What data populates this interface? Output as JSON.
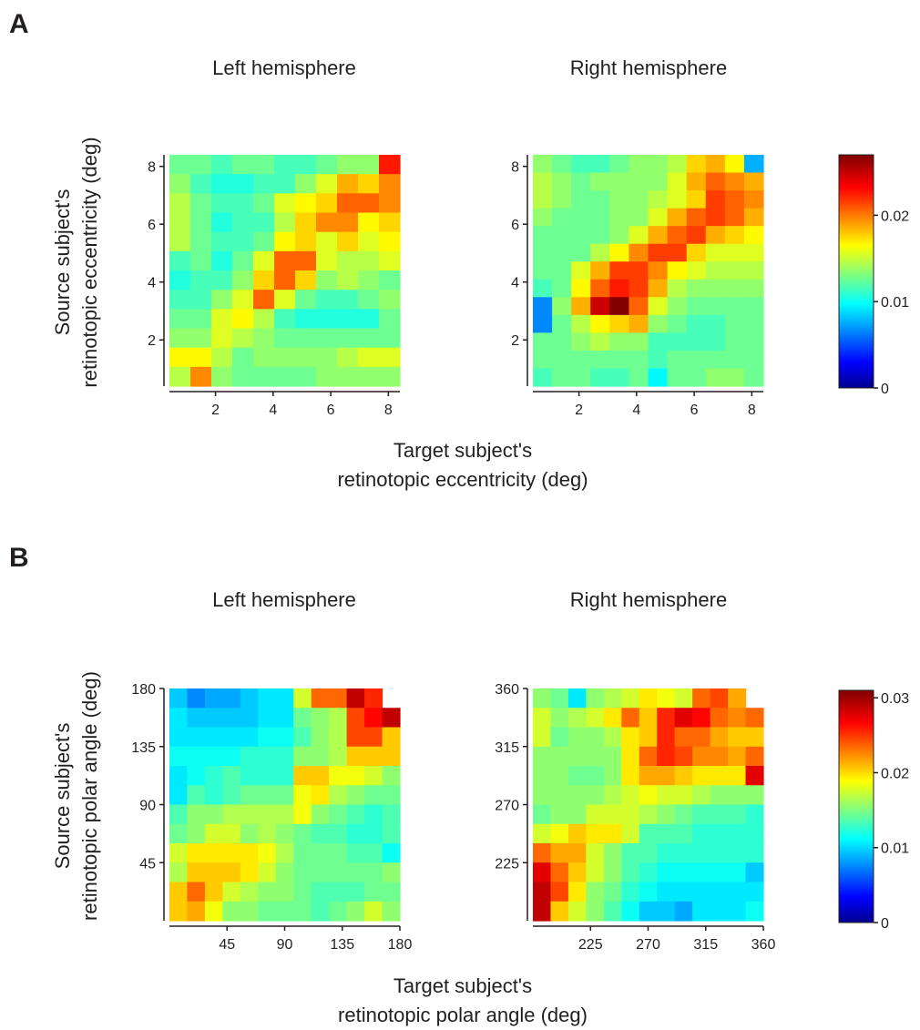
{
  "figure": {
    "panels": [
      {
        "letter": "A",
        "ylabel_line1": "Source subject's",
        "ylabel_line2": "retinotopic eccentricity (deg)",
        "xlabel_line1": "Target subject's",
        "xlabel_line2": "retinotopic eccentricity (deg)"
      },
      {
        "letter": "B",
        "ylabel_line1": "Source subject's",
        "ylabel_line2": "retinotopic polar angle (deg)",
        "xlabel_line1": "Target subject's",
        "xlabel_line2": "retinotopic polar angle (deg)"
      }
    ]
  },
  "chart_data": [
    {
      "type": "heatmap",
      "panel": "A",
      "title": "Left hemisphere",
      "colormap": "jet",
      "x": {
        "min": 0.4,
        "max": 8.4,
        "ticks": [
          2,
          4,
          6,
          8
        ]
      },
      "y": {
        "min": 0.4,
        "max": 8.4,
        "ticks": [
          2,
          4,
          6,
          8
        ]
      },
      "color_range": [
        0,
        0.027
      ],
      "rows_top_to_bottom": [
        [
          0.013,
          0.013,
          0.012,
          0.013,
          0.013,
          0.012,
          0.012,
          0.013,
          0.014,
          0.014,
          0.023
        ],
        [
          0.014,
          0.012,
          0.011,
          0.011,
          0.012,
          0.012,
          0.014,
          0.016,
          0.019,
          0.018,
          0.02
        ],
        [
          0.015,
          0.013,
          0.012,
          0.012,
          0.013,
          0.016,
          0.017,
          0.018,
          0.021,
          0.021,
          0.02
        ],
        [
          0.015,
          0.013,
          0.011,
          0.012,
          0.012,
          0.015,
          0.018,
          0.02,
          0.02,
          0.017,
          0.018
        ],
        [
          0.015,
          0.013,
          0.012,
          0.012,
          0.013,
          0.017,
          0.018,
          0.016,
          0.018,
          0.016,
          0.017
        ],
        [
          0.012,
          0.013,
          0.011,
          0.013,
          0.016,
          0.021,
          0.021,
          0.016,
          0.015,
          0.015,
          0.016
        ],
        [
          0.011,
          0.012,
          0.012,
          0.014,
          0.018,
          0.021,
          0.018,
          0.014,
          0.015,
          0.014,
          0.013
        ],
        [
          0.012,
          0.012,
          0.014,
          0.016,
          0.021,
          0.016,
          0.013,
          0.012,
          0.012,
          0.013,
          0.014
        ],
        [
          0.013,
          0.013,
          0.016,
          0.017,
          0.015,
          0.012,
          0.011,
          0.011,
          0.011,
          0.011,
          0.013
        ],
        [
          0.014,
          0.014,
          0.016,
          0.015,
          0.014,
          0.013,
          0.013,
          0.013,
          0.013,
          0.013,
          0.013
        ],
        [
          0.017,
          0.017,
          0.015,
          0.013,
          0.014,
          0.014,
          0.014,
          0.014,
          0.015,
          0.016,
          0.016
        ],
        [
          0.015,
          0.02,
          0.014,
          0.013,
          0.013,
          0.013,
          0.013,
          0.014,
          0.014,
          0.014,
          0.014
        ]
      ]
    },
    {
      "type": "heatmap",
      "panel": "A",
      "title": "Right hemisphere",
      "colormap": "jet",
      "x": {
        "min": 0.4,
        "max": 8.4,
        "ticks": [
          2,
          4,
          6,
          8
        ]
      },
      "y": {
        "min": 0.4,
        "max": 8.4,
        "ticks": [
          2,
          4,
          6,
          8
        ]
      },
      "color_range": [
        0,
        0.027
      ],
      "rows_top_to_bottom": [
        [
          0.014,
          0.013,
          0.012,
          0.012,
          0.013,
          0.014,
          0.014,
          0.015,
          0.018,
          0.019,
          0.017,
          0.008
        ],
        [
          0.015,
          0.014,
          0.013,
          0.014,
          0.014,
          0.014,
          0.014,
          0.016,
          0.019,
          0.021,
          0.02,
          0.019
        ],
        [
          0.015,
          0.014,
          0.013,
          0.013,
          0.014,
          0.014,
          0.015,
          0.016,
          0.018,
          0.022,
          0.021,
          0.02
        ],
        [
          0.014,
          0.013,
          0.013,
          0.013,
          0.014,
          0.014,
          0.016,
          0.019,
          0.021,
          0.022,
          0.021,
          0.019
        ],
        [
          0.013,
          0.013,
          0.013,
          0.013,
          0.014,
          0.016,
          0.019,
          0.021,
          0.022,
          0.019,
          0.018,
          0.017
        ],
        [
          0.013,
          0.013,
          0.013,
          0.015,
          0.017,
          0.02,
          0.022,
          0.022,
          0.018,
          0.016,
          0.016,
          0.016
        ],
        [
          0.013,
          0.013,
          0.016,
          0.019,
          0.022,
          0.022,
          0.02,
          0.017,
          0.016,
          0.015,
          0.015,
          0.015
        ],
        [
          0.012,
          0.013,
          0.017,
          0.021,
          0.023,
          0.022,
          0.019,
          0.015,
          0.014,
          0.014,
          0.014,
          0.014
        ],
        [
          0.007,
          0.014,
          0.019,
          0.025,
          0.027,
          0.021,
          0.016,
          0.014,
          0.013,
          0.013,
          0.013,
          0.013
        ],
        [
          0.007,
          0.013,
          0.015,
          0.017,
          0.018,
          0.019,
          0.014,
          0.013,
          0.012,
          0.012,
          0.013,
          0.013
        ],
        [
          0.013,
          0.013,
          0.014,
          0.015,
          0.014,
          0.014,
          0.012,
          0.012,
          0.012,
          0.012,
          0.013,
          0.013
        ],
        [
          0.013,
          0.013,
          0.013,
          0.013,
          0.013,
          0.013,
          0.012,
          0.013,
          0.013,
          0.013,
          0.013,
          0.013
        ],
        [
          0.012,
          0.013,
          0.013,
          0.012,
          0.012,
          0.013,
          0.01,
          0.013,
          0.013,
          0.014,
          0.014,
          0.013
        ]
      ]
    },
    {
      "type": "heatmap",
      "panel": "B",
      "title": "Left hemisphere",
      "colormap": "jet",
      "x": {
        "min": 0,
        "max": 180,
        "ticks": [
          45,
          90,
          135,
          180
        ]
      },
      "y": {
        "min": 0,
        "max": 180,
        "ticks": [
          45,
          90,
          135,
          180
        ]
      },
      "color_range": [
        0,
        0.031
      ],
      "rows_top_to_bottom": [
        [
          0.01,
          0.008,
          0.009,
          0.009,
          0.01,
          0.011,
          0.011,
          0.018,
          0.024,
          0.024,
          0.029,
          0.026,
          null
        ],
        [
          0.011,
          0.01,
          0.01,
          0.01,
          0.01,
          0.011,
          0.011,
          0.015,
          0.016,
          0.017,
          0.025,
          0.027,
          0.029
        ],
        [
          0.011,
          0.011,
          0.011,
          0.011,
          0.011,
          0.012,
          0.012,
          0.014,
          0.016,
          0.017,
          0.025,
          0.025,
          0.021
        ],
        [
          0.012,
          0.012,
          0.012,
          0.012,
          0.013,
          0.013,
          0.013,
          0.016,
          0.016,
          0.017,
          0.021,
          0.021,
          0.021
        ],
        [
          0.011,
          0.012,
          0.013,
          0.014,
          0.013,
          0.013,
          0.013,
          0.021,
          0.021,
          0.019,
          0.019,
          0.018,
          0.016
        ],
        [
          0.011,
          0.014,
          0.013,
          0.014,
          0.015,
          0.015,
          0.015,
          0.019,
          0.02,
          0.017,
          0.016,
          0.015,
          0.015
        ],
        [
          0.014,
          0.016,
          0.016,
          0.017,
          0.017,
          0.017,
          0.017,
          0.019,
          0.016,
          0.015,
          0.014,
          0.013,
          0.014
        ],
        [
          0.015,
          0.016,
          0.018,
          0.018,
          0.016,
          0.017,
          0.016,
          0.015,
          0.014,
          0.014,
          0.013,
          0.013,
          0.014
        ],
        [
          0.018,
          0.02,
          0.02,
          0.02,
          0.02,
          0.019,
          0.017,
          0.015,
          0.015,
          0.015,
          0.014,
          0.014,
          0.012
        ],
        [
          0.017,
          0.021,
          0.021,
          0.021,
          0.02,
          0.018,
          0.016,
          0.015,
          0.015,
          0.015,
          0.015,
          0.015,
          0.016
        ],
        [
          0.021,
          0.024,
          0.021,
          0.018,
          0.017,
          0.016,
          0.016,
          0.015,
          0.014,
          0.014,
          0.014,
          0.015,
          0.015
        ],
        [
          0.021,
          0.022,
          0.019,
          0.016,
          0.016,
          0.015,
          0.015,
          0.015,
          0.014,
          0.015,
          0.016,
          0.018,
          0.016
        ]
      ]
    },
    {
      "type": "heatmap",
      "panel": "B",
      "title": "Right hemisphere",
      "colormap": "jet",
      "x": {
        "min": 180,
        "max": 360,
        "ticks": [
          225,
          270,
          315,
          360
        ]
      },
      "y": {
        "min": 180,
        "max": 360,
        "ticks": [
          225,
          270,
          315,
          360
        ]
      },
      "color_range": [
        0,
        0.031
      ],
      "rows_top_to_bottom": [
        [
          0.016,
          0.015,
          0.011,
          0.016,
          0.017,
          0.018,
          0.02,
          0.019,
          0.018,
          0.024,
          0.025,
          0.022,
          null
        ],
        [
          0.018,
          0.016,
          0.017,
          0.018,
          0.02,
          0.024,
          0.021,
          0.026,
          0.028,
          0.027,
          0.024,
          0.023,
          0.024
        ],
        [
          0.018,
          0.015,
          0.016,
          0.016,
          0.017,
          0.02,
          0.021,
          0.026,
          0.024,
          0.024,
          0.022,
          0.021,
          0.021
        ],
        [
          0.016,
          0.016,
          0.016,
          0.016,
          0.016,
          0.02,
          0.024,
          0.026,
          0.025,
          0.023,
          0.023,
          0.022,
          0.024
        ],
        [
          0.016,
          0.016,
          0.015,
          0.015,
          0.016,
          0.02,
          0.022,
          0.022,
          0.021,
          0.02,
          0.02,
          0.02,
          0.028
        ],
        [
          0.016,
          0.016,
          0.016,
          0.016,
          0.017,
          0.018,
          0.019,
          0.018,
          0.018,
          0.017,
          0.016,
          0.016,
          0.016
        ],
        [
          0.015,
          0.016,
          0.016,
          0.018,
          0.018,
          0.018,
          0.017,
          0.016,
          0.015,
          0.014,
          0.014,
          0.014,
          0.013
        ],
        [
          0.018,
          0.019,
          0.021,
          0.02,
          0.02,
          0.018,
          0.014,
          0.014,
          0.014,
          0.013,
          0.013,
          0.013,
          0.013
        ],
        [
          0.024,
          0.022,
          0.022,
          0.018,
          0.016,
          0.014,
          0.014,
          0.013,
          0.013,
          0.013,
          0.013,
          0.013,
          0.013
        ],
        [
          0.028,
          0.024,
          0.021,
          0.018,
          0.016,
          0.014,
          0.013,
          0.012,
          0.012,
          0.012,
          0.012,
          0.012,
          0.01
        ],
        [
          0.029,
          0.025,
          0.02,
          0.016,
          0.015,
          0.013,
          0.012,
          0.011,
          0.011,
          0.011,
          0.011,
          0.011,
          0.011
        ],
        [
          0.029,
          0.021,
          0.018,
          0.016,
          0.014,
          0.012,
          0.01,
          0.01,
          0.009,
          0.011,
          0.011,
          0.011,
          0.012
        ]
      ]
    }
  ],
  "colorbars": [
    {
      "panel": "A",
      "min": 0,
      "max": 0.027,
      "ticks": [
        0,
        0.01,
        0.02
      ],
      "tick_labels": [
        "0",
        "0.01",
        "0.02"
      ]
    },
    {
      "panel": "B",
      "min": 0,
      "max": 0.031,
      "ticks": [
        0,
        0.01,
        0.02,
        0.03
      ],
      "tick_labels": [
        "0",
        "0.01",
        "0.02",
        "0.03"
      ]
    }
  ]
}
